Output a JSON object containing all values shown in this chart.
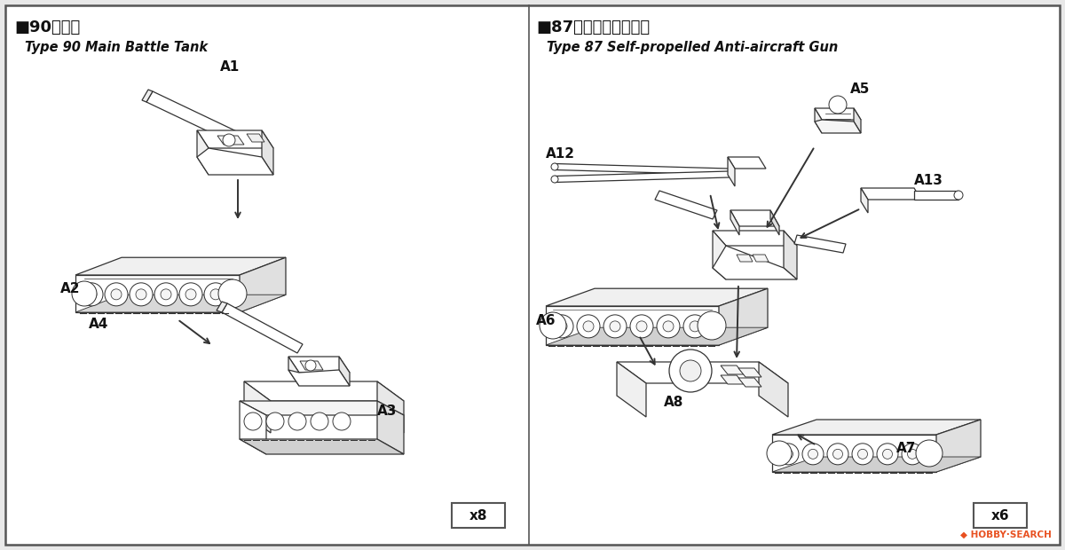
{
  "bg_color": "#e8e8e8",
  "panel_bg": "#ffffff",
  "border_color": "#555555",
  "line_color": "#333333",
  "text_color": "#111111",
  "left_title_jp": "■90式戦車",
  "left_title_en": "Type 90 Main Battle Tank",
  "right_title_jp": "■87式自走高射機銃砲",
  "right_title_en": "Type 87 Self-propelled Anti-aircraft Gun",
  "left_count": "x8",
  "right_count": "x6",
  "left_labels": [
    "A1",
    "A2",
    "A3",
    "A4"
  ],
  "right_labels": [
    "A5",
    "A6",
    "A7",
    "A8",
    "A12",
    "A13"
  ],
  "watermark": "HOBBY-SEARCH"
}
